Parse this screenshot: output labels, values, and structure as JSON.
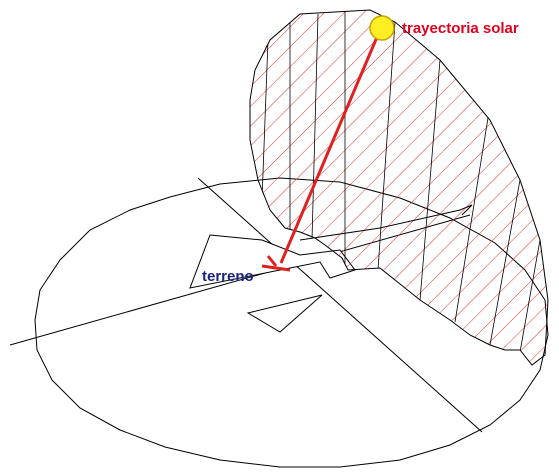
{
  "labels": {
    "sun": "trayectoria solar",
    "terrain": "terreno"
  }
}
